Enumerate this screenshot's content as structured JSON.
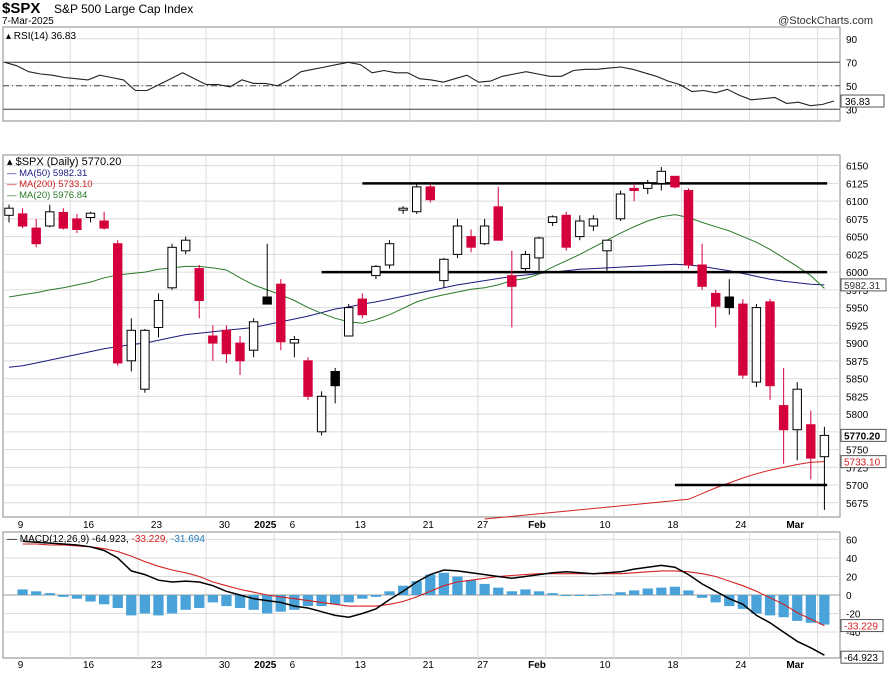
{
  "header": {
    "symbol": "$SPX",
    "name": "S&P 500 Large Cap Index",
    "date": "7-Mar-2025",
    "credit": "@StockCharts.com"
  },
  "colors": {
    "up": "#ffffff",
    "down": "#d4003c",
    "black": "#000000",
    "ma50": "#1a1a80",
    "ma200": "#d42020",
    "ma20": "#2a7a2a",
    "hist": "#4aa3d8",
    "grid": "#dcdcdc"
  },
  "chart_data": [
    {
      "type": "line",
      "panel": "rsi",
      "label": "RSI(14) 36.83",
      "ylim": [
        20,
        100
      ],
      "yticks": [
        30,
        50,
        70,
        90
      ],
      "reference_lines": [
        30,
        50,
        70
      ],
      "last_value_label": "36.83",
      "values": [
        70,
        67,
        62,
        60,
        59,
        57,
        56,
        55,
        59,
        57,
        55,
        46,
        46,
        51,
        56,
        61,
        56,
        51,
        51,
        49,
        55,
        52,
        52,
        50,
        55,
        62,
        64,
        66,
        68,
        70,
        68,
        61,
        63,
        61,
        61,
        56,
        55,
        53,
        56,
        59,
        53,
        54,
        58,
        60,
        62,
        60,
        58,
        58,
        63,
        64,
        64,
        65,
        66,
        64,
        61,
        58,
        54,
        51,
        45,
        46,
        44,
        47,
        42,
        38,
        39,
        40,
        35,
        36,
        33,
        34,
        37
      ],
      "grid": true
    },
    {
      "type": "candlestick",
      "panel": "price",
      "label": "$SPX (Daily) 5770.20",
      "ylim": [
        5655,
        6165
      ],
      "yticks": [
        5675,
        5700,
        5725,
        5750,
        5775,
        5800,
        5825,
        5850,
        5875,
        5900,
        5925,
        5950,
        5975,
        6000,
        6025,
        6050,
        6075,
        6100,
        6125,
        6150
      ],
      "x_tick_labels": [
        "9",
        "16",
        "23",
        "30",
        "2025",
        "6",
        "13",
        "21",
        "27",
        "Feb",
        "10",
        "18",
        "24",
        "Mar"
      ],
      "candles": [
        {
          "o": 6080,
          "h": 6095,
          "l": 6070,
          "c": 6090,
          "k": "up"
        },
        {
          "o": 6082,
          "h": 6090,
          "l": 6062,
          "c": 6065,
          "k": "down"
        },
        {
          "o": 6062,
          "h": 6075,
          "l": 6035,
          "c": 6040,
          "k": "down"
        },
        {
          "o": 6065,
          "h": 6095,
          "l": 6063,
          "c": 6085,
          "k": "up"
        },
        {
          "o": 6084,
          "h": 6090,
          "l": 6060,
          "c": 6062,
          "k": "down"
        },
        {
          "o": 6075,
          "h": 6082,
          "l": 6055,
          "c": 6060,
          "k": "down"
        },
        {
          "o": 6077,
          "h": 6085,
          "l": 6070,
          "c": 6083,
          "k": "up"
        },
        {
          "o": 6072,
          "h": 6085,
          "l": 6060,
          "c": 6062,
          "k": "down"
        },
        {
          "o": 6040,
          "h": 6045,
          "l": 5868,
          "c": 5872,
          "k": "down"
        },
        {
          "o": 5875,
          "h": 5935,
          "l": 5860,
          "c": 5918,
          "k": "up"
        },
        {
          "o": 5835,
          "h": 5920,
          "l": 5830,
          "c": 5918,
          "k": "up"
        },
        {
          "o": 5922,
          "h": 5970,
          "l": 5908,
          "c": 5960,
          "k": "up"
        },
        {
          "o": 5978,
          "h": 6040,
          "l": 5975,
          "c": 6035,
          "k": "up"
        },
        {
          "o": 6030,
          "h": 6050,
          "l": 6025,
          "c": 6045,
          "k": "up"
        },
        {
          "o": 6005,
          "h": 6010,
          "l": 5935,
          "c": 5960,
          "k": "down"
        },
        {
          "o": 5910,
          "h": 5925,
          "l": 5875,
          "c": 5900,
          "k": "down"
        },
        {
          "o": 5918,
          "h": 5925,
          "l": 5872,
          "c": 5885,
          "k": "down"
        },
        {
          "o": 5900,
          "h": 5910,
          "l": 5855,
          "c": 5875,
          "k": "down"
        },
        {
          "o": 5890,
          "h": 5935,
          "l": 5880,
          "c": 5930,
          "k": "up"
        },
        {
          "o": 5965,
          "h": 6040,
          "l": 5960,
          "c": 5955,
          "k": "black"
        },
        {
          "o": 5983,
          "h": 5990,
          "l": 5890,
          "c": 5902,
          "k": "down"
        },
        {
          "o": 5900,
          "h": 5910,
          "l": 5880,
          "c": 5905,
          "k": "up"
        },
        {
          "o": 5875,
          "h": 5880,
          "l": 5820,
          "c": 5825,
          "k": "down"
        },
        {
          "o": 5775,
          "h": 5832,
          "l": 5770,
          "c": 5825,
          "k": "up"
        },
        {
          "o": 5840,
          "h": 5865,
          "l": 5815,
          "c": 5860,
          "k": "black"
        },
        {
          "o": 5910,
          "h": 5955,
          "l": 5910,
          "c": 5950,
          "k": "up"
        },
        {
          "o": 5962,
          "h": 5970,
          "l": 5935,
          "c": 5940,
          "k": "down"
        },
        {
          "o": 5995,
          "h": 6010,
          "l": 5990,
          "c": 6008,
          "k": "up"
        },
        {
          "o": 6010,
          "h": 6045,
          "l": 6005,
          "c": 6040,
          "k": "up"
        },
        {
          "o": 6088,
          "h": 6093,
          "l": 6082,
          "c": 6090,
          "k": "up"
        },
        {
          "o": 6085,
          "h": 6125,
          "l": 6082,
          "c": 6120,
          "k": "up"
        },
        {
          "o": 6120,
          "h": 6125,
          "l": 6098,
          "c": 6102,
          "k": "down"
        },
        {
          "o": 5988,
          "h": 6020,
          "l": 5978,
          "c": 6018,
          "k": "up"
        },
        {
          "o": 6025,
          "h": 6075,
          "l": 6020,
          "c": 6065,
          "k": "up"
        },
        {
          "o": 6050,
          "h": 6060,
          "l": 6028,
          "c": 6035,
          "k": "down"
        },
        {
          "o": 6040,
          "h": 6075,
          "l": 6038,
          "c": 6065,
          "k": "up"
        },
        {
          "o": 6092,
          "h": 6120,
          "l": 6045,
          "c": 6045,
          "k": "down"
        },
        {
          "o": 5995,
          "h": 6030,
          "l": 5922,
          "c": 5980,
          "k": "down"
        },
        {
          "o": 6005,
          "h": 6030,
          "l": 6000,
          "c": 6025,
          "k": "up"
        },
        {
          "o": 6020,
          "h": 6050,
          "l": 6002,
          "c": 6048,
          "k": "up"
        },
        {
          "o": 6070,
          "h": 6080,
          "l": 6065,
          "c": 6078,
          "k": "up"
        },
        {
          "o": 6080,
          "h": 6085,
          "l": 6030,
          "c": 6035,
          "k": "down"
        },
        {
          "o": 6050,
          "h": 6080,
          "l": 6045,
          "c": 6072,
          "k": "up"
        },
        {
          "o": 6065,
          "h": 6080,
          "l": 6058,
          "c": 6075,
          "k": "up"
        },
        {
          "o": 6030,
          "h": 6040,
          "l": 6000,
          "c": 6045,
          "k": "up"
        },
        {
          "o": 6075,
          "h": 6115,
          "l": 6072,
          "c": 6110,
          "k": "up"
        },
        {
          "o": 6115,
          "h": 6125,
          "l": 6100,
          "c": 6118,
          "k": "down"
        },
        {
          "o": 6118,
          "h": 6130,
          "l": 6110,
          "c": 6125,
          "k": "up"
        },
        {
          "o": 6125,
          "h": 6148,
          "l": 6115,
          "c": 6142,
          "k": "up"
        },
        {
          "o": 6135,
          "h": 6135,
          "l": 6118,
          "c": 6120,
          "k": "down"
        },
        {
          "o": 6115,
          "h": 6118,
          "l": 6005,
          "c": 6010,
          "k": "down"
        },
        {
          "o": 6010,
          "h": 6040,
          "l": 5975,
          "c": 5980,
          "k": "down"
        },
        {
          "o": 5970,
          "h": 5975,
          "l": 5922,
          "c": 5952,
          "k": "down"
        },
        {
          "o": 5965,
          "h": 5990,
          "l": 5940,
          "c": 5950,
          "k": "black"
        },
        {
          "o": 5955,
          "h": 5962,
          "l": 5850,
          "c": 5855,
          "k": "down"
        },
        {
          "o": 5845,
          "h": 5955,
          "l": 5838,
          "c": 5950,
          "k": "up"
        },
        {
          "o": 5958,
          "h": 5962,
          "l": 5820,
          "c": 5840,
          "k": "down"
        },
        {
          "o": 5812,
          "h": 5865,
          "l": 5730,
          "c": 5778,
          "k": "down"
        },
        {
          "o": 5778,
          "h": 5845,
          "l": 5735,
          "c": 5835,
          "k": "up"
        },
        {
          "o": 5785,
          "h": 5805,
          "l": 5708,
          "c": 5738,
          "k": "down"
        },
        {
          "o": 5740,
          "h": 5782,
          "l": 5665,
          "c": 5770,
          "k": "up"
        }
      ],
      "series": [
        {
          "name": "MA(50) 5982.31",
          "values": [
            5866,
            5868,
            5872,
            5876,
            5880,
            5884,
            5888,
            5892,
            5895,
            5898,
            5900,
            5904,
            5908,
            5912,
            5914,
            5916,
            5918,
            5920,
            5922,
            5926,
            5930,
            5934,
            5938,
            5943,
            5948,
            5951,
            5955,
            5958,
            5962,
            5966,
            5970,
            5974,
            5978,
            5982,
            5985,
            5988,
            5991,
            5994,
            5996,
            5998,
            6000,
            6002,
            6004,
            6005,
            6006,
            6007,
            6008,
            6009,
            6010,
            6011,
            6010,
            6008,
            6005,
            6002,
            5998,
            5994,
            5990,
            5987,
            5985,
            5983,
            5982
          ]
        },
        {
          "name": "MA(200) 5733.10",
          "values": [
            5680,
            5688,
            5696,
            5703,
            5710,
            5716,
            5721,
            5725,
            5729,
            5732,
            5733
          ]
        },
        {
          "name": "MA(20) 5976.84",
          "values": [
            5965,
            5968,
            5971,
            5975,
            5978,
            5982,
            5986,
            5992,
            5996,
            5998,
            6000,
            6004,
            6006,
            6008,
            6008,
            6006,
            6003,
            5992,
            5982,
            5975,
            5968,
            5960,
            5950,
            5942,
            5935,
            5930,
            5928,
            5933,
            5940,
            5949,
            5958,
            5964,
            5968,
            5972,
            5976,
            5978,
            5982,
            5988,
            5991,
            5997,
            6007,
            6016,
            6025,
            6035,
            6045,
            6055,
            6064,
            6072,
            6078,
            6081,
            6077,
            6070,
            6064,
            6058,
            6050,
            6042,
            6032,
            6020,
            6008,
            5995,
            5977
          ]
        }
      ],
      "current_labels": [
        "5982.31",
        "5770.20",
        "5733.10"
      ],
      "support_resistance": [
        6125,
        6000,
        5700
      ],
      "grid": true
    },
    {
      "type": "bar+line",
      "panel": "macd",
      "label": "MACD(12,26,9) -64.923, -33.229, -31.694",
      "legend": {
        "prefix": "MACD(12,26,9)",
        "macd": "-64.923",
        "signal": "-33.229",
        "hist": "-31.694"
      },
      "ylim": [
        -68,
        68
      ],
      "yticks": [
        60,
        40,
        20,
        0,
        -20,
        -40
      ],
      "last_value_labels": [
        "-33.229",
        "-64.923"
      ],
      "histogram": [
        6,
        4,
        2,
        -2,
        -4,
        -7,
        -10,
        -14,
        -22,
        -20,
        -22,
        -20,
        -16,
        -14,
        -8,
        -12,
        -14,
        -16,
        -20,
        -18,
        -16,
        -12,
        -12,
        -10,
        -8,
        -4,
        -2,
        4,
        10,
        15,
        22,
        24,
        20,
        16,
        12,
        8,
        4,
        6,
        4,
        2,
        -1,
        -1,
        -1,
        1,
        3,
        5,
        7,
        8,
        9,
        5,
        -3,
        -8,
        -12,
        -15,
        -20,
        -22,
        -24,
        -28,
        -30,
        -32
      ],
      "macd": [
        58,
        57,
        56,
        55,
        54,
        52,
        48,
        40,
        26,
        22,
        16,
        14,
        15,
        14,
        10,
        4,
        0,
        -4,
        -6,
        -8,
        -12,
        -14,
        -18,
        -22,
        -24,
        -20,
        -15,
        -5,
        4,
        14,
        22,
        27,
        26,
        24,
        22,
        20,
        18,
        20,
        22,
        24,
        25,
        24,
        23,
        24,
        25,
        28,
        30,
        32,
        30,
        22,
        12,
        4,
        -4,
        -10,
        -22,
        -30,
        -40,
        -50,
        -57,
        -65
      ],
      "signal": [
        55,
        55,
        54,
        54,
        53,
        52,
        50,
        47,
        42,
        36,
        31,
        27,
        24,
        20,
        14,
        10,
        6,
        3,
        0,
        -2,
        -4,
        -6,
        -8,
        -10,
        -12,
        -12,
        -12,
        -10,
        -7,
        -2,
        4,
        10,
        14,
        16,
        18,
        20,
        21,
        22,
        23,
        23,
        23,
        23,
        23,
        23,
        23,
        24,
        25,
        26,
        26,
        25,
        23,
        20,
        15,
        10,
        4,
        -3,
        -10,
        -19,
        -26,
        -33
      ],
      "grid": true
    }
  ]
}
